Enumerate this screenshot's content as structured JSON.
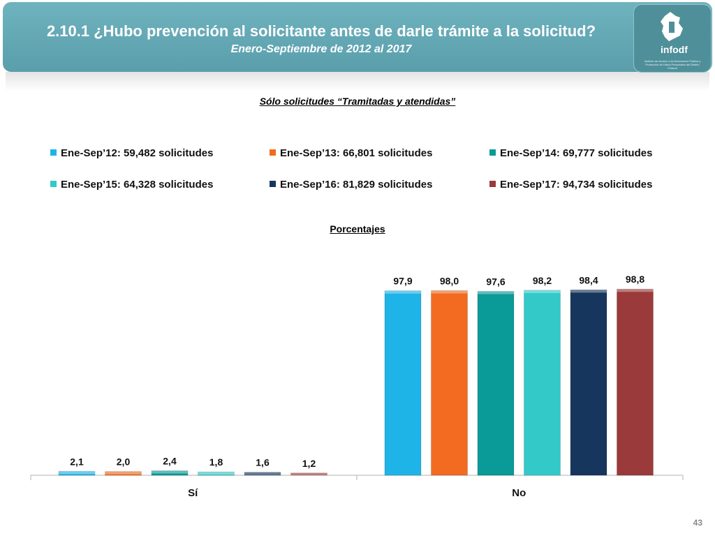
{
  "header": {
    "title": "2.10.1 ¿Hubo prevención al solicitante antes de darle trámite a la solicitud?",
    "subtitle": "Enero-Septiembre de 2012 al 2017",
    "logo_text": "infodf",
    "logo_small": "Instituto de Acceso a la Información Pública y Protección de Datos Personales del Distrito Federal"
  },
  "filter_label": "Sólo solicitudes “Tramitadas y atendidas”",
  "page_number": "43",
  "chart_data": {
    "type": "bar",
    "ylabel": "Porcentajes",
    "categories": [
      "Sí",
      "No"
    ],
    "series": [
      {
        "name": "Ene-Sep’12: 59,482 solicitudes",
        "color": "#1fb4e8",
        "values": [
          2.1,
          97.9
        ],
        "labels": [
          "2,1",
          "97,9"
        ]
      },
      {
        "name": "Ene-Sep’13: 66,801 solicitudes",
        "color": "#f26b21",
        "values": [
          2.0,
          98.0
        ],
        "labels": [
          "2,0",
          "98,0"
        ]
      },
      {
        "name": "Ene-Sep’14: 69,777 solicitudes",
        "color": "#0a9a98",
        "values": [
          2.4,
          97.6
        ],
        "labels": [
          "2,4",
          "97,6"
        ]
      },
      {
        "name": "Ene-Sep’15: 64,328 solicitudes",
        "color": "#33c9c9",
        "values": [
          1.8,
          98.2
        ],
        "labels": [
          "1,8",
          "98,2"
        ]
      },
      {
        "name": "Ene-Sep’16: 81,829 solicitudes",
        "color": "#17365d",
        "values": [
          1.6,
          98.4
        ],
        "labels": [
          "1,6",
          "98,4"
        ]
      },
      {
        "name": "Ene-Sep’17: 94,734 solicitudes",
        "color": "#9b3a3a",
        "values": [
          1.2,
          98.8
        ],
        "labels": [
          "1,2",
          "98,8"
        ]
      }
    ]
  }
}
